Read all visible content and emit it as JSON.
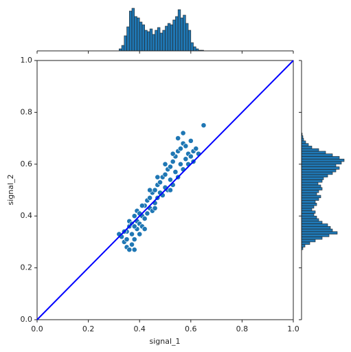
{
  "chart_data": {
    "type": "joint",
    "xlabel": "signal_1",
    "ylabel": "signal_2",
    "xlim": [
      0,
      1
    ],
    "ylim": [
      0,
      1
    ],
    "xticks": [
      {
        "value": 0,
        "label": "0.0"
      },
      0.2,
      0.4,
      0.6,
      0.8,
      {
        "value": 1,
        "label": "1.0"
      }
    ],
    "yticks": [
      {
        "value": 0,
        "label": "0.0"
      },
      0.2,
      0.4,
      0.6,
      0.8,
      {
        "value": 1,
        "label": "1.0"
      }
    ],
    "scatter": {
      "color": "#1f77b4",
      "x": [
        0.33,
        0.34,
        0.35,
        0.36,
        0.37,
        0.38,
        0.35,
        0.36,
        0.37,
        0.38,
        0.39,
        0.4,
        0.36,
        0.37,
        0.38,
        0.39,
        0.4,
        0.41,
        0.39,
        0.4,
        0.41,
        0.42,
        0.43,
        0.42,
        0.43,
        0.44,
        0.45,
        0.44,
        0.45,
        0.46,
        0.47,
        0.46,
        0.47,
        0.48,
        0.49,
        0.48,
        0.49,
        0.5,
        0.51,
        0.5,
        0.51,
        0.52,
        0.53,
        0.52,
        0.53,
        0.54,
        0.55,
        0.54,
        0.55,
        0.56,
        0.57,
        0.56,
        0.57,
        0.58,
        0.59,
        0.58,
        0.59,
        0.6,
        0.61,
        0.62,
        0.63,
        0.57,
        0.55,
        0.65,
        0.6,
        0.53,
        0.5,
        0.47,
        0.44,
        0.41,
        0.38,
        0.34,
        0.32,
        0.61,
        0.35,
        0.42,
        0.46,
        0.52
      ],
      "y": [
        0.32,
        0.3,
        0.28,
        0.27,
        0.29,
        0.27,
        0.34,
        0.36,
        0.33,
        0.31,
        0.35,
        0.33,
        0.38,
        0.37,
        0.4,
        0.38,
        0.37,
        0.36,
        0.42,
        0.41,
        0.4,
        0.39,
        0.41,
        0.44,
        0.46,
        0.43,
        0.42,
        0.47,
        0.49,
        0.45,
        0.47,
        0.5,
        0.52,
        0.49,
        0.48,
        0.53,
        0.55,
        0.51,
        0.5,
        0.56,
        0.58,
        0.54,
        0.52,
        0.59,
        0.61,
        0.57,
        0.55,
        0.63,
        0.65,
        0.6,
        0.58,
        0.66,
        0.68,
        0.62,
        0.6,
        0.67,
        0.64,
        0.63,
        0.65,
        0.66,
        0.64,
        0.72,
        0.7,
        0.75,
        0.69,
        0.64,
        0.6,
        0.55,
        0.5,
        0.44,
        0.36,
        0.34,
        0.33,
        0.61,
        0.31,
        0.35,
        0.43,
        0.5
      ]
    },
    "line": {
      "color": "#0000ff",
      "x": [
        0,
        1
      ],
      "y": [
        0,
        1
      ]
    },
    "x_hist": {
      "color": "#1f77b4",
      "bins": [
        0.32,
        0.33,
        0.34,
        0.35,
        0.36,
        0.37,
        0.38,
        0.39,
        0.4,
        0.41,
        0.42,
        0.43,
        0.44,
        0.45,
        0.46,
        0.47,
        0.48,
        0.49,
        0.5,
        0.51,
        0.52,
        0.53,
        0.54,
        0.55,
        0.56,
        0.57,
        0.58,
        0.59,
        0.6,
        0.61,
        0.62,
        0.63,
        0.64,
        0.65
      ],
      "counts": [
        3,
        8,
        22,
        35,
        58,
        62,
        50,
        48,
        42,
        38,
        30,
        28,
        32,
        24,
        30,
        34,
        26,
        30,
        36,
        40,
        38,
        45,
        50,
        60,
        48,
        52,
        40,
        30,
        12,
        6,
        3,
        1,
        1
      ]
    },
    "y_hist": {
      "color": "#1f77b4",
      "bins": [
        0.27,
        0.28,
        0.29,
        0.3,
        0.31,
        0.32,
        0.33,
        0.34,
        0.35,
        0.36,
        0.37,
        0.38,
        0.39,
        0.4,
        0.41,
        0.42,
        0.43,
        0.44,
        0.45,
        0.46,
        0.47,
        0.48,
        0.49,
        0.5,
        0.51,
        0.52,
        0.53,
        0.54,
        0.55,
        0.56,
        0.57,
        0.58,
        0.59,
        0.6,
        0.61,
        0.62,
        0.63,
        0.64,
        0.65,
        0.66,
        0.67,
        0.68,
        0.69,
        0.7,
        0.71,
        0.72
      ],
      "counts": [
        2,
        5,
        12,
        20,
        30,
        40,
        52,
        45,
        42,
        38,
        30,
        25,
        22,
        18,
        20,
        15,
        18,
        22,
        20,
        25,
        28,
        22,
        25,
        30,
        28,
        24,
        30,
        32,
        38,
        45,
        50,
        55,
        50,
        58,
        62,
        55,
        45,
        35,
        25,
        15,
        10,
        6,
        3,
        2,
        1
      ]
    }
  }
}
